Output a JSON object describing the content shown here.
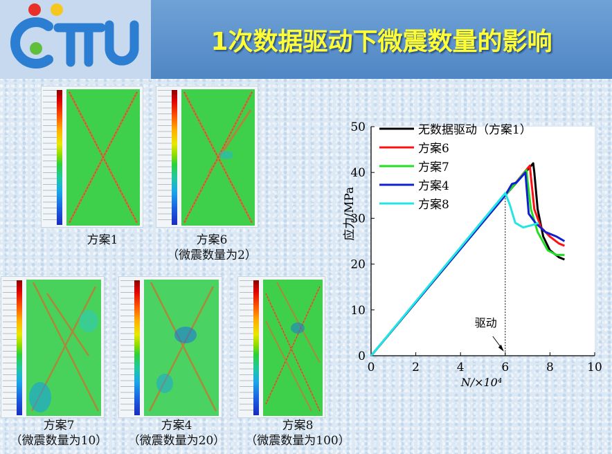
{
  "header": {
    "title": "1次数据驱动下微震数量的影响"
  },
  "logo": {
    "name": "ctu-logo",
    "text": "CTU"
  },
  "panels": [
    {
      "line1": "方案1",
      "line2": ""
    },
    {
      "line1": "方案6",
      "line2": "（微震数量为2）"
    },
    {
      "line1": "方案7",
      "line2": "（微震数量为10）"
    },
    {
      "line1": "方案4",
      "line2": "（微震数量为20）"
    },
    {
      "line1": "方案8",
      "line2": "（微震数量为100）"
    }
  ],
  "chart_data": {
    "type": "line",
    "xlabel": "N/×10⁴",
    "ylabel": "应力/MPa",
    "xlim": [
      0,
      10
    ],
    "ylim": [
      0,
      50
    ],
    "xticks": [
      "0",
      "2",
      "4",
      "6",
      "8",
      "10"
    ],
    "yticks": [
      "0",
      "10",
      "20",
      "30",
      "40",
      "50"
    ],
    "annotation": {
      "text": "驱动",
      "x": 6,
      "y": 0
    },
    "legend_position": "top-left",
    "series": [
      {
        "name": "无数据驱动（方案1）",
        "color": "#000000",
        "points": [
          [
            0,
            0
          ],
          [
            6,
            35
          ],
          [
            7.25,
            42
          ],
          [
            7.3,
            40
          ],
          [
            7.45,
            32
          ],
          [
            7.7,
            26
          ],
          [
            8,
            23
          ],
          [
            8.4,
            21.5
          ],
          [
            8.65,
            21
          ]
        ]
      },
      {
        "name": "方案6",
        "color": "#ff1010",
        "points": [
          [
            0,
            0
          ],
          [
            6,
            35
          ],
          [
            7.1,
            41.5
          ],
          [
            7.15,
            39
          ],
          [
            7.3,
            32
          ],
          [
            7.6,
            28
          ],
          [
            8,
            26
          ],
          [
            8.4,
            24.5
          ],
          [
            8.65,
            24
          ]
        ]
      },
      {
        "name": "方案7",
        "color": "#22dd22",
        "points": [
          [
            0,
            0
          ],
          [
            6,
            35
          ],
          [
            6.95,
            40.5
          ],
          [
            7.0,
            38
          ],
          [
            7.15,
            32
          ],
          [
            7.45,
            27
          ],
          [
            7.9,
            23
          ],
          [
            8.3,
            22
          ],
          [
            8.65,
            22
          ]
        ]
      },
      {
        "name": "方案4",
        "color": "#1020d0",
        "points": [
          [
            0,
            0
          ],
          [
            6,
            35
          ],
          [
            6.3,
            37.5
          ],
          [
            6.5,
            37.8
          ],
          [
            6.9,
            40
          ],
          [
            6.95,
            37
          ],
          [
            7.05,
            31
          ],
          [
            7.35,
            29
          ],
          [
            7.8,
            27
          ],
          [
            8.3,
            26
          ],
          [
            8.65,
            25
          ]
        ]
      },
      {
        "name": "方案8",
        "color": "#22e5e5",
        "points": [
          [
            0,
            0
          ],
          [
            6,
            35.5
          ],
          [
            6.2,
            33
          ],
          [
            6.45,
            29
          ],
          [
            6.8,
            28
          ],
          [
            7.2,
            28.5
          ],
          [
            7.5,
            29
          ]
        ]
      }
    ]
  }
}
